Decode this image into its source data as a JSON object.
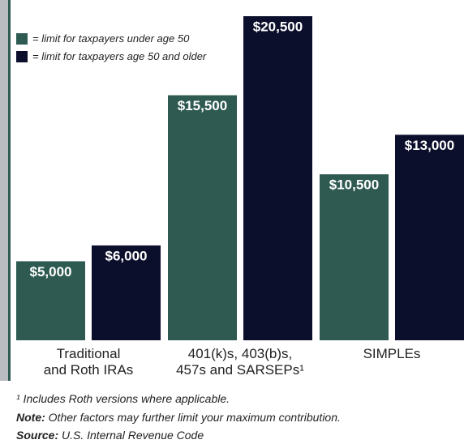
{
  "chart_data": {
    "type": "bar",
    "categories": [
      "Traditional\nand Roth IRAs",
      "401(k)s, 403(b)s,\n457s and SARSEPs¹",
      "SIMPLEs"
    ],
    "series": [
      {
        "name": "= limit for taxpayers under age 50",
        "color": "#2e5a51",
        "values": [
          5000,
          15500,
          10500
        ],
        "value_labels": [
          "$5,000",
          "$15,500",
          "$10,500"
        ]
      },
      {
        "name": "= limit for taxpayers age 50 and older",
        "color": "#0b0f2b",
        "values": [
          6000,
          20500,
          13000
        ],
        "value_labels": [
          "$6,000",
          "$20,500",
          "$13,000"
        ]
      }
    ],
    "footnote": "¹ Includes Roth versions where applicable.",
    "notes": [
      {
        "label": "Note:",
        "text": "Other factors may further limit your maximum contribution."
      },
      {
        "label": "Source:",
        "text": "U.S. Internal Revenue Code"
      }
    ]
  }
}
